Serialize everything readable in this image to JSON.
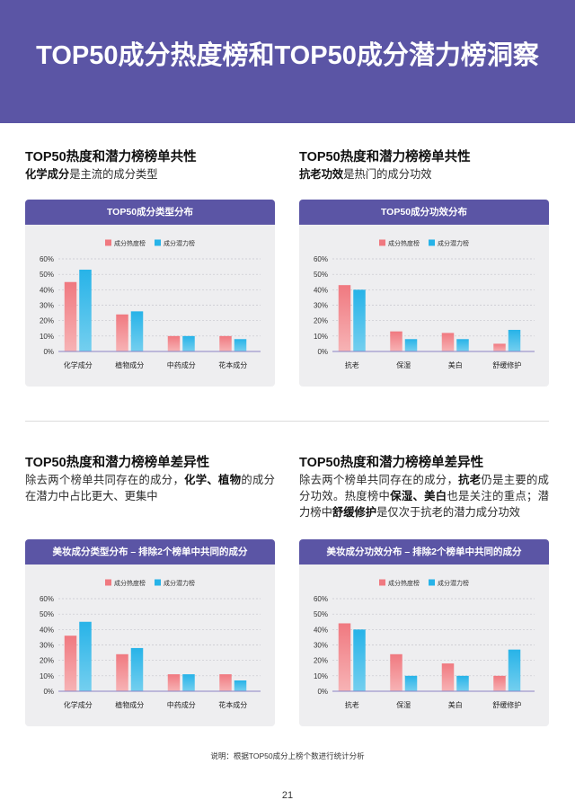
{
  "header": {
    "title": "TOP50成分热度榜和TOP50成分潜力榜洞察"
  },
  "colors": {
    "header_bg": "#5B55A5",
    "card_header_bg": "#5B55A5",
    "card_bg": "#EEEEF0",
    "heat_series": "#F07980",
    "heat_series_light": "#F7B3B5",
    "potential_series": "#27B3E8",
    "potential_series_light": "#74CFEF",
    "axis_line": "#8A83C4",
    "grid_line": "#C6C6CD"
  },
  "sections": [
    {
      "heading": "TOP50热度和潜力榜榜单共性",
      "body": [
        {
          "text": "化学成分",
          "bold": true
        },
        {
          "text": "是主流的成分类型",
          "bold": false
        }
      ]
    },
    {
      "heading": "TOP50热度和潜力榜榜单共性",
      "body": [
        {
          "text": "抗老功效",
          "bold": true
        },
        {
          "text": "是热门的成分功效",
          "bold": false
        }
      ]
    },
    {
      "heading": "TOP50热度和潜力榜榜单差异性",
      "body": [
        {
          "text": "除去两个榜单共同存在的成分，",
          "bold": false
        },
        {
          "text": "化学、植物",
          "bold": true
        },
        {
          "text": "的成分在潜力中占比更大、更集中",
          "bold": false
        }
      ]
    },
    {
      "heading": "TOP50热度和潜力榜榜单差异性",
      "body": [
        {
          "text": "除去两个榜单共同存在的成分，",
          "bold": false
        },
        {
          "text": "抗老",
          "bold": true
        },
        {
          "text": "仍是主要的成分功效。热度榜中",
          "bold": false
        },
        {
          "text": "保湿、美白",
          "bold": true
        },
        {
          "text": "也是关注的重点；潜力榜中",
          "bold": false
        },
        {
          "text": "舒缓修护",
          "bold": true
        },
        {
          "text": "是仅次于抗老的潜力成分功效",
          "bold": false
        }
      ]
    }
  ],
  "chart_data": [
    {
      "type": "bar",
      "title": "TOP50成分类型分布",
      "categories": [
        "化学成分",
        "植物成分",
        "中药成分",
        "花本成分"
      ],
      "series": [
        {
          "name": "成分热度榜",
          "values": [
            45,
            24,
            10,
            10
          ]
        },
        {
          "name": "成分潜力榜",
          "values": [
            53,
            26,
            10,
            8
          ]
        }
      ],
      "ylim": [
        0,
        60
      ],
      "yticks": [
        {
          "value": 0,
          "label": "0%"
        },
        {
          "value": 10,
          "label": "10%"
        },
        {
          "value": 20,
          "label": "20%"
        },
        {
          "value": 30,
          "label": "30%"
        },
        {
          "value": 40,
          "label": "40%"
        },
        {
          "value": 50,
          "label": "50%"
        },
        {
          "value": 60,
          "label": "60%"
        }
      ],
      "grid": true,
      "legend": "top-center"
    },
    {
      "type": "bar",
      "title": "TOP50成分功效分布",
      "categories": [
        "抗老",
        "保湿",
        "美白",
        "舒缓修护"
      ],
      "series": [
        {
          "name": "成分热度榜",
          "values": [
            43,
            13,
            12,
            5
          ]
        },
        {
          "name": "成分潜力榜",
          "values": [
            40,
            8,
            8,
            14
          ]
        }
      ],
      "ylim": [
        0,
        60
      ],
      "yticks": [
        {
          "value": 0,
          "label": "0%"
        },
        {
          "value": 10,
          "label": "10%"
        },
        {
          "value": 20,
          "label": "20%"
        },
        {
          "value": 30,
          "label": "30%"
        },
        {
          "value": 40,
          "label": "40%"
        },
        {
          "value": 50,
          "label": "50%"
        },
        {
          "value": 60,
          "label": "60%"
        }
      ],
      "grid": true,
      "legend": "top-center"
    },
    {
      "type": "bar",
      "title": "美妆成分类型分布 – 排除2个榜单中共同的成分",
      "categories": [
        "化学成分",
        "植物成分",
        "中药成分",
        "花本成分"
      ],
      "series": [
        {
          "name": "成分热度榜",
          "values": [
            36,
            24,
            11,
            11
          ]
        },
        {
          "name": "成分潜力榜",
          "values": [
            45,
            28,
            11,
            7
          ]
        }
      ],
      "ylim": [
        0,
        60
      ],
      "yticks": [
        {
          "value": 0,
          "label": "0%"
        },
        {
          "value": 10,
          "label": "10%"
        },
        {
          "value": 20,
          "label": "20%"
        },
        {
          "value": 30,
          "label": "30%"
        },
        {
          "value": 40,
          "label": "40%"
        },
        {
          "value": 50,
          "label": "50%"
        },
        {
          "value": 60,
          "label": "60%"
        }
      ],
      "grid": true,
      "legend": "top-center"
    },
    {
      "type": "bar",
      "title": "美妆成分功效分布 – 排除2个榜单中共同的成分",
      "categories": [
        "抗老",
        "保湿",
        "美白",
        "舒缓修护"
      ],
      "series": [
        {
          "name": "成分热度榜",
          "values": [
            44,
            24,
            18,
            10
          ]
        },
        {
          "name": "成分潜力榜",
          "values": [
            40,
            10,
            10,
            27
          ]
        }
      ],
      "ylim": [
        0,
        60
      ],
      "yticks": [
        {
          "value": 0,
          "label": "0%"
        },
        {
          "value": 10,
          "label": "10%"
        },
        {
          "value": 20,
          "label": "20%"
        },
        {
          "value": 30,
          "label": "30%"
        },
        {
          "value": 40,
          "label": "40%"
        },
        {
          "value": 50,
          "label": "50%"
        },
        {
          "value": 60,
          "label": "60%"
        }
      ],
      "grid": true,
      "legend": "top-center"
    }
  ],
  "footer": {
    "note": "说明：根据TOP50成分上榜个数进行统计分析",
    "page_number": "21"
  }
}
